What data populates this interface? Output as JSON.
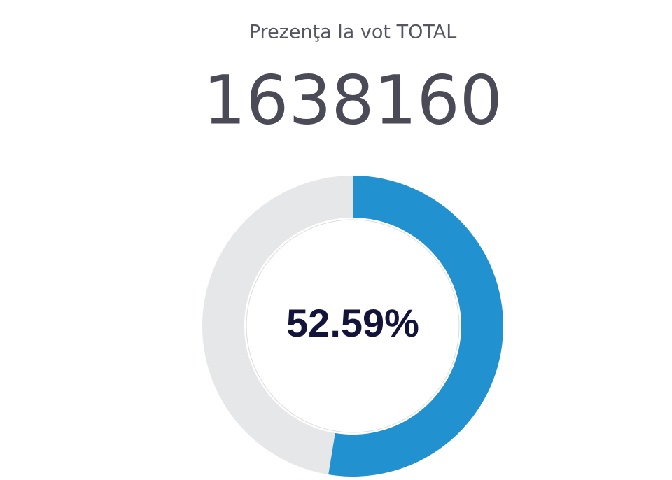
{
  "chart_data": {
    "type": "donut",
    "title": "Prezenţa la vot TOTAL",
    "total": 1638160,
    "values": [
      52.59
    ],
    "value_labels": [
      "52.59%"
    ],
    "color": "#2191d0",
    "track_color": "#e6e7e9"
  }
}
